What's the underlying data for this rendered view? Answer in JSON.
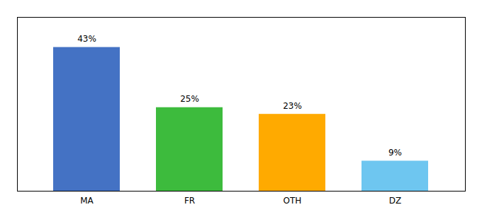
{
  "chart_data": {
    "type": "bar",
    "categories": [
      "MA",
      "FR",
      "OTH",
      "DZ"
    ],
    "values": [
      43,
      25,
      23,
      9
    ],
    "value_labels": [
      "43%",
      "25%",
      "23%",
      "9%"
    ],
    "colors": [
      "#4472c4",
      "#3dbb3d",
      "#ffaa00",
      "#6ec6f0"
    ],
    "ylim": [
      0,
      52
    ],
    "data_labels": true,
    "tick_labels": "x",
    "grid": false
  }
}
